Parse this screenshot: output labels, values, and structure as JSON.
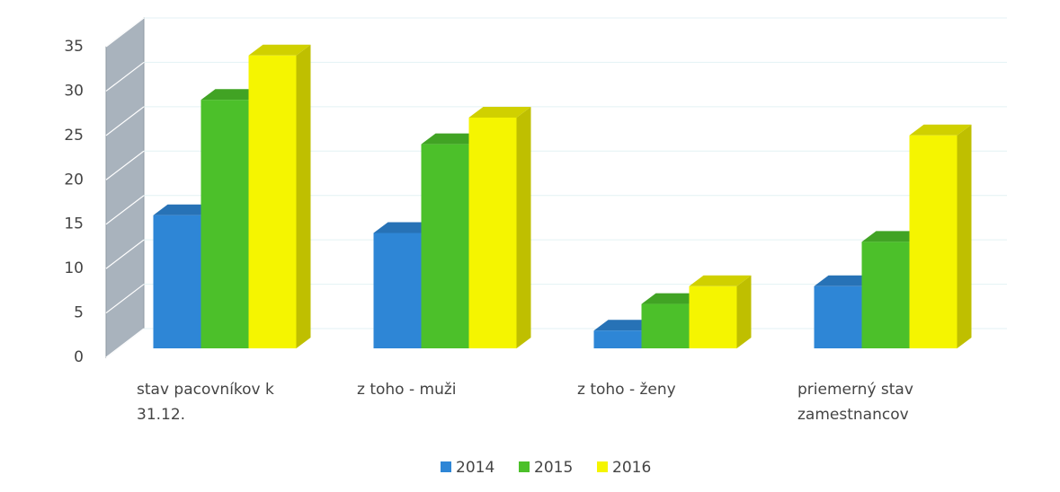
{
  "chart_data": {
    "type": "bar3d",
    "categories": [
      "stav pacovníkov k 31.12.",
      "z toho - muži",
      "z toho - ženy",
      "priemerný stav zamestnancov"
    ],
    "series": [
      {
        "name": "2014",
        "color": "#2e86d6",
        "values": [
          15,
          13,
          2,
          7
        ]
      },
      {
        "name": "2015",
        "color": "#4cc02a",
        "values": [
          28,
          23,
          5,
          12
        ]
      },
      {
        "name": "2016",
        "color": "#f5f500",
        "values": [
          33,
          26,
          7,
          24
        ]
      }
    ],
    "ylim": [
      0,
      35
    ],
    "yticks": [
      0,
      5,
      10,
      15,
      20,
      25,
      30,
      35
    ],
    "grid": true,
    "legend": "bottom"
  }
}
